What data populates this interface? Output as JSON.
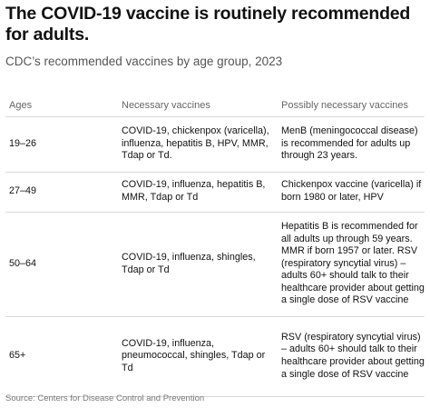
{
  "header": {
    "title": "The COVID-19 vaccine is routinely recommended for adults.",
    "subtitle": "CDC’s recommended vaccines by age group, 2023"
  },
  "table": {
    "columns": [
      "Ages",
      "Necessary vaccines",
      "Possibly necessary vaccines"
    ],
    "rows": [
      {
        "ages": "19–26",
        "necessary": "COVID-19, chickenpox (varicella), influenza, hepatitis B, HPV, MMR, Tdap or Td.",
        "possible": "MenB (meningococcal disease) is recommended for adults up through 23 years."
      },
      {
        "ages": "27–49",
        "necessary": "COVID-19, influenza, hepatitis B, MMR, Tdap or Td",
        "possible": "Chickenpox vaccine (varicella) if born 1980 or later, HPV"
      },
      {
        "ages": "50–64",
        "necessary": "COVID-19, influenza, shingles, Tdap or Td",
        "possible": "Hepatitis B is recommended for all adults up through 59 years. MMR if born 1957 or later. RSV (respiratory syncytial virus) – adults 60+ should talk to their healthcare provider about getting a single dose of RSV vaccine"
      },
      {
        "ages": "65+",
        "necessary": "COVID-19, influenza, pneumococcal, shingles, Tdap or Td",
        "possible": "RSV (respiratory syncytial virus) – adults 60+ should talk to their healthcare provider about getting a single dose of RSV vaccine"
      }
    ]
  },
  "footer": {
    "source": "Source: Centers for Disease Control and Prevention"
  }
}
